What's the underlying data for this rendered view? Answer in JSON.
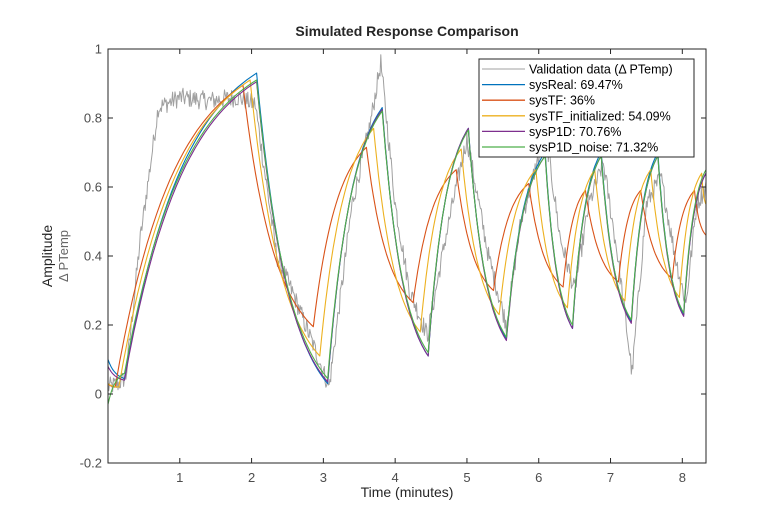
{
  "chart_data": {
    "type": "line",
    "title": "Simulated Response Comparison",
    "xlabel": "Time (minutes)",
    "ylabel": "Amplitude",
    "ylabel_sub": "Δ  PTemp",
    "xlim": [
      0,
      8.33
    ],
    "ylim": [
      -0.2,
      1
    ],
    "xticks": [
      1,
      2,
      3,
      4,
      5,
      6,
      7,
      8
    ],
    "xtick_labels": [
      "1",
      "2",
      "3",
      "4",
      "5",
      "6",
      "7",
      "8"
    ],
    "yticks": [
      -0.2,
      0,
      0.2,
      0.4,
      0.6,
      0.8,
      1
    ],
    "ytick_labels": [
      "-0.2",
      "0",
      "0.2",
      "0.4",
      "0.6",
      "0.8",
      "1"
    ],
    "grid": false,
    "legend_position": "top-right",
    "series": [
      {
        "name": "Validation data (Δ PTemp)",
        "legend_label": "Validation  data  (Δ  PTemp)",
        "color": "#a0a0a0",
        "noisy": true,
        "points": [
          [
            0,
            0.02
          ],
          [
            0.15,
            0.03
          ],
          [
            0.25,
            0.05
          ],
          [
            0.45,
            0.45
          ],
          [
            0.7,
            0.83
          ],
          [
            1.0,
            0.86
          ],
          [
            1.4,
            0.85
          ],
          [
            1.8,
            0.86
          ],
          [
            2.05,
            0.84
          ],
          [
            2.35,
            0.4
          ],
          [
            2.6,
            0.28
          ],
          [
            2.9,
            0.12
          ],
          [
            3.08,
            0.02
          ],
          [
            3.4,
            0.55
          ],
          [
            3.65,
            0.78
          ],
          [
            3.8,
            0.96
          ],
          [
            4.0,
            0.55
          ],
          [
            4.2,
            0.3
          ],
          [
            4.45,
            0.17
          ],
          [
            4.7,
            0.45
          ],
          [
            4.85,
            0.6
          ],
          [
            5.0,
            0.74
          ],
          [
            5.3,
            0.4
          ],
          [
            5.55,
            0.2
          ],
          [
            5.75,
            0.5
          ],
          [
            5.95,
            0.65
          ],
          [
            6.1,
            0.75
          ],
          [
            6.3,
            0.45
          ],
          [
            6.5,
            0.3
          ],
          [
            6.7,
            0.55
          ],
          [
            6.9,
            0.67
          ],
          [
            7.1,
            0.4
          ],
          [
            7.3,
            0.06
          ],
          [
            7.5,
            0.55
          ],
          [
            7.7,
            0.63
          ],
          [
            7.9,
            0.4
          ],
          [
            8.05,
            0.26
          ],
          [
            8.2,
            0.55
          ],
          [
            8.33,
            0.6
          ]
        ]
      },
      {
        "name": "sysReal",
        "legend_label": "sysReal: 69.47%",
        "fit_percent": 69.47,
        "color": "#0072bd",
        "points": [
          [
            0,
            0.1
          ],
          [
            0.23,
            0.045
          ],
          [
            2.07,
            0.93
          ],
          [
            3.06,
            0.03
          ],
          [
            3.82,
            0.83
          ],
          [
            4.46,
            0.11
          ],
          [
            5.02,
            0.77
          ],
          [
            5.55,
            0.16
          ],
          [
            6.09,
            0.7
          ],
          [
            6.47,
            0.19
          ],
          [
            6.87,
            0.7
          ],
          [
            7.29,
            0.21
          ],
          [
            7.66,
            0.7
          ],
          [
            8.02,
            0.23
          ],
          [
            8.33,
            0.64
          ]
        ]
      },
      {
        "name": "sysTF",
        "legend_label": "sysTF:  36%",
        "fit_percent": 36,
        "color": "#d95319",
        "points": [
          [
            0,
            0.03
          ],
          [
            0.1,
            0.02
          ],
          [
            1.88,
            0.895
          ],
          [
            2.86,
            0.195
          ],
          [
            3.6,
            0.715
          ],
          [
            4.25,
            0.265
          ],
          [
            4.85,
            0.65
          ],
          [
            5.37,
            0.3
          ],
          [
            5.86,
            0.61
          ],
          [
            6.34,
            0.31
          ],
          [
            6.65,
            0.59
          ],
          [
            7.11,
            0.325
          ],
          [
            7.42,
            0.59
          ],
          [
            7.86,
            0.335
          ],
          [
            8.17,
            0.59
          ],
          [
            8.33,
            0.46
          ]
        ]
      },
      {
        "name": "sysTF_initialized",
        "legend_label": "sysTF_initialized:  54.09%",
        "fit_percent": 54.09,
        "color": "#edb120",
        "points": [
          [
            0,
            0.03
          ],
          [
            0.15,
            0.02
          ],
          [
            1.98,
            0.91
          ],
          [
            2.95,
            0.11
          ],
          [
            3.7,
            0.77
          ],
          [
            4.35,
            0.18
          ],
          [
            4.92,
            0.71
          ],
          [
            5.45,
            0.23
          ],
          [
            5.96,
            0.65
          ],
          [
            6.4,
            0.25
          ],
          [
            6.78,
            0.65
          ],
          [
            7.2,
            0.27
          ],
          [
            7.56,
            0.65
          ],
          [
            7.96,
            0.28
          ],
          [
            8.27,
            0.64
          ],
          [
            8.33,
            0.55
          ]
        ]
      },
      {
        "name": "sysP1D",
        "legend_label": "sysP1D: 70.76%",
        "fit_percent": 70.76,
        "color": "#7e2f8e",
        "points": [
          [
            0,
            0.08
          ],
          [
            0.23,
            0.04
          ],
          [
            2.07,
            0.905
          ],
          [
            3.06,
            0.035
          ],
          [
            3.82,
            0.825
          ],
          [
            4.46,
            0.11
          ],
          [
            5.02,
            0.77
          ],
          [
            5.55,
            0.155
          ],
          [
            6.09,
            0.69
          ],
          [
            6.47,
            0.19
          ],
          [
            6.87,
            0.69
          ],
          [
            7.29,
            0.205
          ],
          [
            7.66,
            0.69
          ],
          [
            8.02,
            0.225
          ],
          [
            8.33,
            0.64
          ]
        ]
      },
      {
        "name": "sysP1D_noise",
        "legend_label": "sysP1D_noise:  71.32%",
        "fit_percent": 71.32,
        "color": "#4daf4a",
        "points": [
          [
            0,
            -0.03
          ],
          [
            0.23,
            0.06
          ],
          [
            2.07,
            0.91
          ],
          [
            3.06,
            0.045
          ],
          [
            3.82,
            0.82
          ],
          [
            4.46,
            0.12
          ],
          [
            5.02,
            0.765
          ],
          [
            5.55,
            0.165
          ],
          [
            6.09,
            0.69
          ],
          [
            6.47,
            0.2
          ],
          [
            6.87,
            0.69
          ],
          [
            7.29,
            0.215
          ],
          [
            7.66,
            0.69
          ],
          [
            8.02,
            0.235
          ],
          [
            8.33,
            0.65
          ]
        ]
      }
    ]
  }
}
